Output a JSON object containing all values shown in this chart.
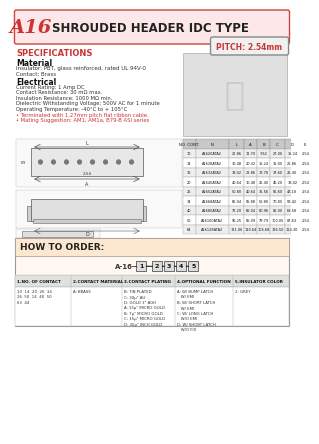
{
  "title_code": "A16",
  "title_text": "SHROUDED HEADER IDC TYPE",
  "pitch_label": "PITCH: 2.54mm",
  "bg_color": "#f5f5f5",
  "header_bg": "#fce8e8",
  "header_border": "#cc4444",
  "specs_title": "SPECIFICATIONS",
  "material_title": "Material",
  "material_lines": [
    "Insulator: PBT, glass reinforced, rated UL 94V-0",
    "Contact: Brass"
  ],
  "electrical_title": "Electrical",
  "electrical_lines": [
    "Current Rating: 1 Amp DC",
    "Contact Resistance: 30 mΩ max.",
    "Insulation Resistance: 1000 MΩ min.",
    "Dielectric Withstanding Voltage: 500V AC for 1 minute",
    "Operating Temperature: -40°C to + 105°C",
    "• Terminated with 1.27mm pitch flat ribbon cable.",
    "• Mating Suggestion: AM1, AM1a, B79-B ASI series"
  ],
  "how_to_order_title": "HOW TO ORDER:",
  "order_label": "A-16",
  "order_cols": [
    "1",
    "2",
    "3",
    "4",
    "5"
  ],
  "order_sections": [
    {
      "header": "1.NO. OF CONTACT",
      "lines": [
        "10  14  20  26  34",
        "26  50  14  40  50",
        "63  44"
      ]
    },
    {
      "header": "2.CONTACT MATERIAL",
      "lines": [
        "A: BRASS"
      ]
    },
    {
      "header": "3.CONTACT PLATING",
      "lines": [
        "B: TIN PLATED",
        "C: 30μ\" AU",
        "D: GOLD 3\" AGH",
        "A: 15μ\" MICRO GOLD",
        "B: 7μ\" MICRO GOLD",
        "C: 15μ\" MICRO GOLD",
        "D: 30μ\" INCH GOLD"
      ]
    },
    {
      "header": "4.OPTIONAL FUNCTION",
      "lines": [
        "A: W/ BUMP LATCH",
        "   W/ EMI",
        "B: W/ SHORT LATCH",
        "   W/ EMI",
        "C: W/ LONG LATCH",
        "   W/O EMI",
        "D: W/ SHORT LATCH",
        "   W/O FIX"
      ]
    },
    {
      "header": "5.INSULATOR COLOR",
      "lines": [
        "2: GREY"
      ]
    }
  ],
  "table_headers": [
    "NO.\nCONT.",
    "N",
    "L",
    "A",
    "B",
    "C",
    "D",
    "E"
  ],
  "table_col_widths": [
    14,
    36,
    16,
    14,
    14,
    16,
    16,
    12
  ],
  "table_rows": [
    [
      "10",
      "A1620ATA2",
      "22.86",
      "12.70",
      "7.62",
      "27.00",
      "15.24",
      "2.54"
    ],
    [
      "14",
      "A1628ATA2",
      "30.48",
      "20.32",
      "15.24",
      "35.00",
      "22.86",
      "2.54"
    ],
    [
      "16",
      "A1632ATA2",
      "33.02",
      "22.86",
      "17.78",
      "37.60",
      "25.40",
      "2.54"
    ],
    [
      "20",
      "A1640ATA2",
      "40.64",
      "30.48",
      "25.40",
      "45.20",
      "33.02",
      "2.54"
    ],
    [
      "26",
      "A1652ATA2",
      "50.80",
      "40.64",
      "35.56",
      "55.60",
      "43.18",
      "2.54"
    ],
    [
      "34",
      "A1668ATA2",
      "66.04",
      "55.88",
      "50.80",
      "70.80",
      "58.42",
      "2.54"
    ],
    [
      "40",
      "A1680ATA2",
      "76.20",
      "66.04",
      "60.96",
      "81.00",
      "68.58",
      "2.54"
    ],
    [
      "50",
      "A16100ATA2",
      "95.25",
      "85.09",
      "79.79",
      "100.05",
      "87.63",
      "2.54"
    ],
    [
      "64",
      "A16128ATA2",
      "121.06",
      "110.64",
      "106.68",
      "126.50",
      "114.30",
      "2.54"
    ]
  ]
}
